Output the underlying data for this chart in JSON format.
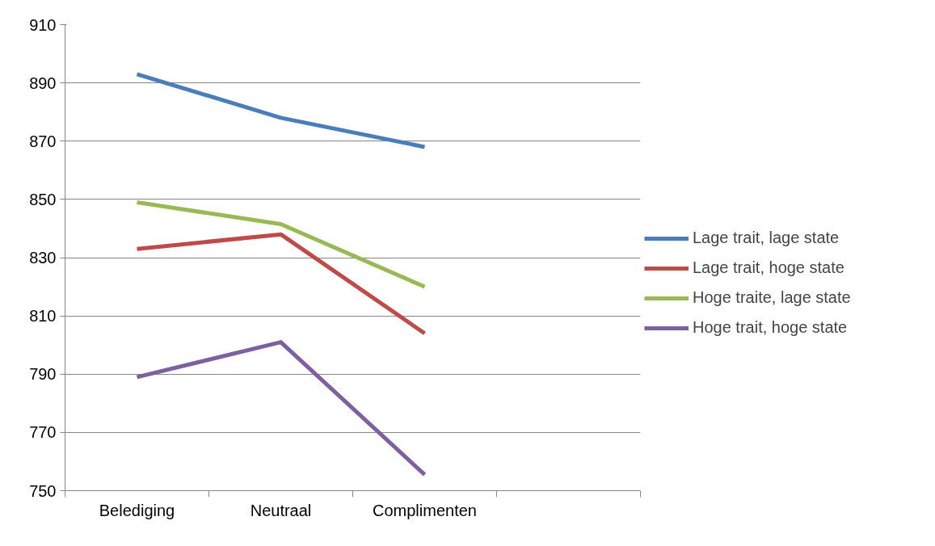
{
  "chart_data": {
    "type": "line",
    "categories": [
      "Belediging",
      "Neutraal",
      "Complimenten",
      null
    ],
    "series": [
      {
        "name": "Lage trait, lage state",
        "color": "#4a7ebb",
        "values": [
          893,
          878,
          868,
          null
        ]
      },
      {
        "name": "Lage trait, hoge state",
        "color": "#be4b48",
        "values": [
          833,
          838,
          804,
          null
        ]
      },
      {
        "name": "Hoge traite, lage state",
        "color": "#98b954",
        "values": [
          849,
          841.5,
          820,
          null
        ]
      },
      {
        "name": "Hoge trait, hoge state",
        "color": "#7d60a0",
        "values": [
          789,
          801,
          755.5,
          null
        ]
      }
    ],
    "ylim": [
      750,
      910
    ],
    "yticks": [
      750,
      770,
      790,
      810,
      830,
      850,
      870,
      890,
      910
    ],
    "grid": "y",
    "legend": "right",
    "marker": "none",
    "line_style": "solid"
  }
}
